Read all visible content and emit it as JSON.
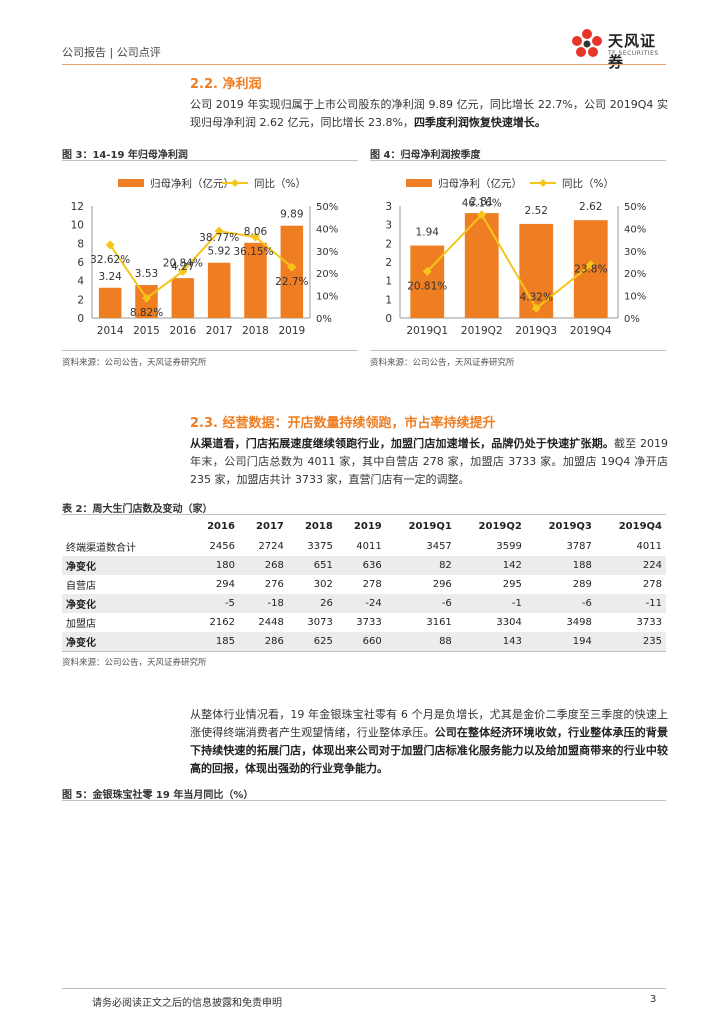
{
  "header": {
    "left": "公司报告 | 公司点评",
    "logo_cn": "天风证券",
    "logo_en": "TF SECURITIES"
  },
  "sections": {
    "s22": {
      "title": "2.2. 净利润",
      "para": "公司 2019 年实现归属于上市公司股东的净利润 9.89 亿元，同比增长 22.7%，公司 2019Q4 实现归母净利润 2.62 亿元，同比增长 23.8%，",
      "para_bold": "四季度利润恢复快速增长。"
    },
    "s23": {
      "title": "2.3. 经营数据：开店数量持续领跑，市占率持续提升",
      "para_bold": "从渠道看，门店拓展速度继续领跑行业，加盟门店加速增长，品牌仍处于快速扩张期。",
      "para": "截至 2019 年末，公司门店总数为 4011 家，其中自营店 278 家，加盟店 3733 家。加盟店 19Q4 净开店 235 家，加盟店共计 3733 家，直营门店有一定的调整。"
    },
    "s_ind": {
      "para": "从整体行业情况看，19 年金银珠宝社零有 6 个月是负增长，尤其是金价二季度至三季度的快速上涨使得终端消费者产生观望情绪，行业整体承压。",
      "para_bold": "公司在整体经济环境收敛，行业整体承压的背景下持续快速的拓展门店，体现出来公司对于加盟门店标准化服务能力以及给加盟商带来的行业中较高的回报，体现出强劲的行业竞争能力。"
    }
  },
  "figures": {
    "fig3_title": "图 3：14-19 年归母净利润",
    "fig4_title": "图 4：归母净利润按季度",
    "fig5_title": "图 5：金银珠宝社零 19 年当月同比（%）",
    "source1": "资料来源：公司公告，天风证券研究所",
    "source2": "资料来源：公司公告，天风证券研究所"
  },
  "table": {
    "title": "表 2：周大生门店数及变动（家）",
    "source": "资料来源：公司公告，天风证券研究所",
    "headers": [
      "",
      "2016",
      "2017",
      "2018",
      "2019",
      "2019Q1",
      "2019Q2",
      "2019Q3",
      "2019Q4"
    ],
    "rows": [
      [
        "终端渠道数合计",
        "2456",
        "2724",
        "3375",
        "4011",
        "3457",
        "3599",
        "3787",
        "4011"
      ],
      [
        "净变化",
        "180",
        "268",
        "651",
        "636",
        "82",
        "142",
        "188",
        "224"
      ],
      [
        "自营店",
        "294",
        "276",
        "302",
        "278",
        "296",
        "295",
        "289",
        "278"
      ],
      [
        "净变化",
        "-5",
        "-18",
        "26",
        "-24",
        "-6",
        "-1",
        "-6",
        "-11"
      ],
      [
        "加盟店",
        "2162",
        "2448",
        "3073",
        "3733",
        "3161",
        "3304",
        "3498",
        "3733"
      ],
      [
        "净变化",
        "185",
        "286",
        "625",
        "660",
        "88",
        "143",
        "194",
        "235"
      ]
    ]
  },
  "footer": {
    "text": "请务必阅读正文之后的信息披露和免责申明",
    "page": "3"
  },
  "colors": {
    "bar": "#ef7d22",
    "line": "#f5c518",
    "accent": "#ef7d22"
  },
  "chart_data": [
    {
      "type": "bar",
      "categories": [
        "2014",
        "2015",
        "2016",
        "2017",
        "2018",
        "2019"
      ],
      "series": [
        {
          "name": "归母净利（亿元）",
          "values": [
            3.24,
            3.53,
            4.27,
            5.92,
            8.06,
            9.89
          ],
          "labels": [
            "3.24",
            "3.53",
            "4.27",
            "5.92",
            "8.06",
            "9.89"
          ]
        },
        {
          "name": "同比（%）",
          "type": "line",
          "axis": "right",
          "values": [
            32.62,
            8.82,
            20.84,
            38.77,
            36.15,
            22.7
          ],
          "labels": [
            "32.62%",
            "8.82%",
            "20.84%",
            "38.77%",
            "36.15%",
            "22.7%"
          ]
        }
      ],
      "ylim": [
        0,
        12
      ],
      "yticks": [
        "0",
        "2",
        "4",
        "6",
        "8",
        "10",
        "12"
      ],
      "y2lim": [
        0,
        50
      ],
      "y2ticks": [
        "0%",
        "10%",
        "20%",
        "30%",
        "40%",
        "50%"
      ],
      "legend": "top"
    },
    {
      "type": "bar",
      "categories": [
        "2019Q1",
        "2019Q2",
        "2019Q3",
        "2019Q4"
      ],
      "series": [
        {
          "name": "归母净利（亿元）",
          "values": [
            1.94,
            2.81,
            2.52,
            2.62
          ],
          "labels": [
            "1.94",
            "2.81",
            "2.52",
            "2.62"
          ]
        },
        {
          "name": "同比（%）",
          "type": "line",
          "axis": "right",
          "values": [
            20.81,
            46.16,
            4.32,
            23.8
          ],
          "labels": [
            "20.81%",
            "46.16%",
            "4.32%",
            "23.8%"
          ]
        }
      ],
      "ylim": [
        0,
        3
      ],
      "yticks": [
        "0",
        "1",
        "1",
        "2",
        "2",
        "3",
        "3"
      ],
      "y2lim": [
        0,
        50
      ],
      "y2ticks": [
        "0%",
        "10%",
        "20%",
        "30%",
        "40%",
        "50%"
      ],
      "legend": "top"
    }
  ]
}
